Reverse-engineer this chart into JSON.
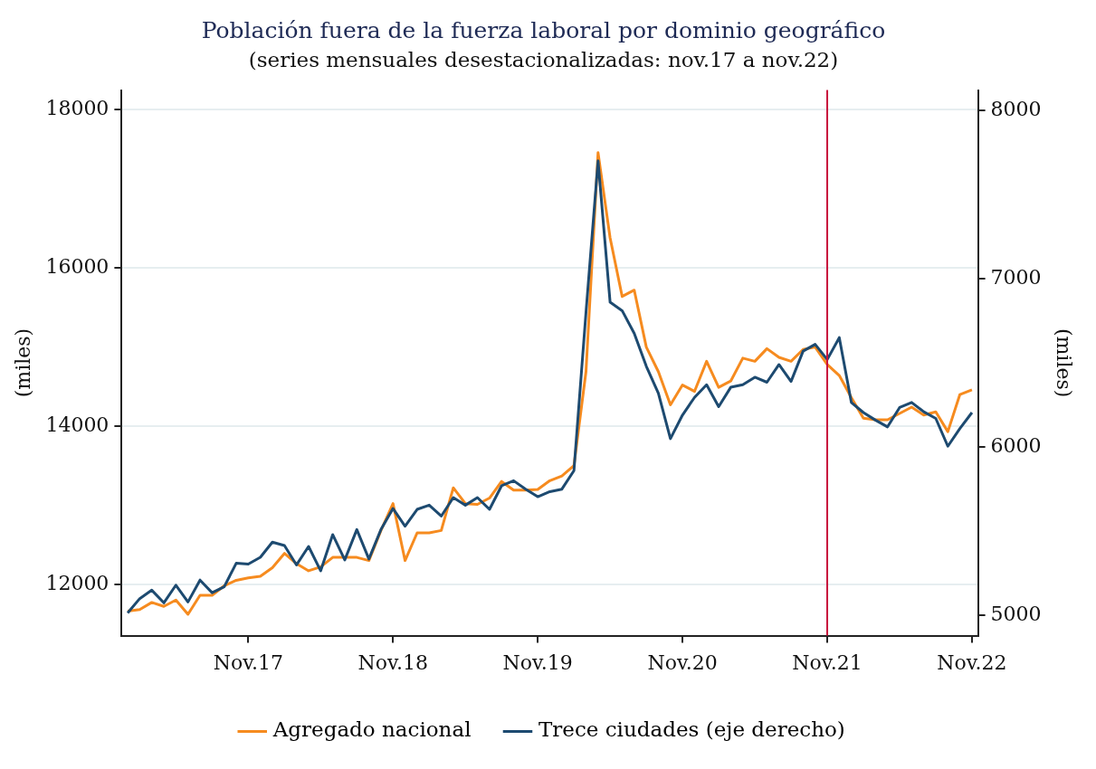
{
  "chart_data": {
    "type": "line",
    "title": "Población fuera de la fuerza laboral por dominio geográfico",
    "subtitle": "(series mensuales desestacionalizadas: nov.17 a nov.22)",
    "ylabel": "(miles)",
    "y2label": "(miles)",
    "categories": [
      null,
      null,
      null,
      null,
      null,
      null,
      null,
      null,
      null,
      null,
      "Nov.17",
      null,
      null,
      null,
      null,
      null,
      null,
      null,
      null,
      null,
      null,
      null,
      "Nov.18",
      null,
      null,
      null,
      null,
      null,
      null,
      null,
      null,
      null,
      null,
      null,
      "Nov.19",
      null,
      null,
      null,
      null,
      null,
      null,
      null,
      null,
      null,
      null,
      null,
      "Nov.20",
      null,
      null,
      null,
      null,
      null,
      null,
      null,
      null,
      null,
      null,
      null,
      "Nov.21",
      null,
      null,
      null,
      null,
      null,
      null,
      null,
      null,
      null,
      null,
      null,
      "Nov.22"
    ],
    "series": [
      {
        "name": "Agregado nacional",
        "color": "#f68b1f",
        "values": [
          11660,
          11680,
          11770,
          11720,
          11800,
          11620,
          11860,
          11860,
          11980,
          12050,
          12080,
          12100,
          12210,
          12390,
          12260,
          12170,
          12220,
          12340,
          12340,
          12340,
          12300,
          12680,
          13020,
          12300,
          12650,
          12650,
          12680,
          13220,
          13020,
          13010,
          13090,
          13300,
          13190,
          13190,
          13200,
          13310,
          13370,
          13500,
          14690,
          17460,
          16380,
          15640,
          15720,
          15000,
          14690,
          14270,
          14520,
          14440,
          14820,
          14490,
          14570,
          14860,
          14820,
          14980,
          14870,
          14820,
          14970,
          15000,
          14780,
          14640,
          14360,
          14100,
          14080,
          14080,
          14160,
          14240,
          14140,
          14180,
          13930,
          14400,
          14460
        ]
      },
      {
        "name": "Trece ciudades (eje derecho)",
        "color": "#1d4a70",
        "axis": "y2",
        "values": [
          5015,
          5100,
          5150,
          5075,
          5180,
          5080,
          5210,
          5135,
          5170,
          5310,
          5305,
          5345,
          5435,
          5415,
          5300,
          5410,
          5265,
          5480,
          5330,
          5510,
          5335,
          5510,
          5635,
          5530,
          5630,
          5655,
          5590,
          5700,
          5655,
          5700,
          5630,
          5770,
          5800,
          5750,
          5705,
          5735,
          5750,
          5860,
          6800,
          7700,
          6860,
          6810,
          6675,
          6480,
          6320,
          6050,
          6190,
          6295,
          6370,
          6240,
          6355,
          6370,
          6415,
          6385,
          6490,
          6390,
          6570,
          6610,
          6520,
          6650,
          6265,
          6205,
          6160,
          6120,
          6235,
          6265,
          6210,
          6170,
          6005,
          6110,
          6205
        ]
      }
    ],
    "ylim": [
      11350,
      18250
    ],
    "yticks": [
      12000,
      14000,
      16000,
      18000
    ],
    "y2lim": [
      4880,
      8120
    ],
    "y2ticks": [
      5000,
      6000,
      7000,
      8000
    ],
    "ref_lines": [
      {
        "axis": "x",
        "value": "Nov.21",
        "color": "#c8103c"
      }
    ],
    "grid": "y",
    "legend": "bottom",
    "marker": "none",
    "line_style": "solid"
  }
}
